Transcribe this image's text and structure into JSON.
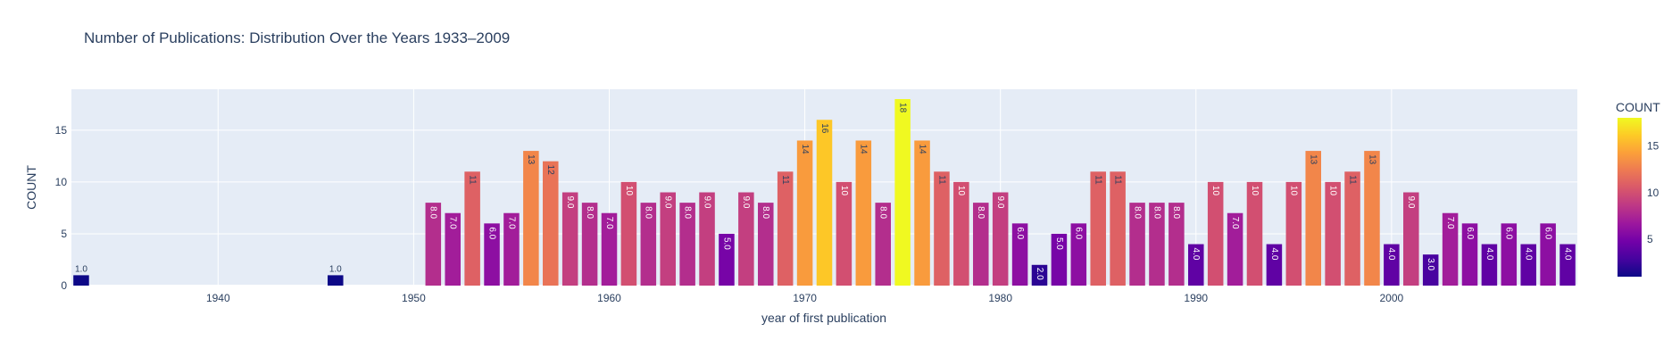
{
  "chart_data": {
    "type": "bar",
    "title": "Number of Publications: Distribution Over the Years 1933–2009",
    "xlabel": "year of first publication",
    "ylabel": "COUNT",
    "xlim": [
      1932.5,
      2009.5
    ],
    "ylim": [
      0,
      18.95
    ],
    "x_ticks": [
      1940,
      1950,
      1960,
      1970,
      1980,
      1990,
      2000
    ],
    "y_ticks": [
      0,
      5,
      10,
      15
    ],
    "grid": true,
    "colorbar": {
      "title": "COUNT",
      "range": [
        1,
        18
      ],
      "ticks": [
        5,
        10,
        15
      ],
      "colorscale": "plasma"
    },
    "x": [
      1933,
      1946,
      1951,
      1952,
      1953,
      1954,
      1955,
      1956,
      1957,
      1958,
      1959,
      1960,
      1961,
      1962,
      1963,
      1964,
      1965,
      1966,
      1967,
      1968,
      1969,
      1970,
      1971,
      1972,
      1973,
      1974,
      1975,
      1976,
      1977,
      1978,
      1979,
      1980,
      1981,
      1982,
      1983,
      1984,
      1985,
      1986,
      1987,
      1988,
      1989,
      1990,
      1991,
      1992,
      1993,
      1994,
      1995,
      1996,
      1997,
      1998,
      1999,
      2000,
      2001,
      2002,
      2003,
      2004,
      2005,
      2006,
      2007,
      2008,
      2009
    ],
    "values": [
      1,
      1,
      8,
      7,
      11,
      6,
      7,
      13,
      12,
      9,
      8,
      7,
      10,
      8,
      9,
      8,
      9,
      5,
      9,
      8,
      11,
      14,
      16,
      10,
      14,
      8,
      18,
      14,
      11,
      10,
      8,
      9,
      6,
      2,
      5,
      6,
      11,
      11,
      8,
      8,
      8,
      4,
      10,
      7,
      10,
      4,
      10,
      13,
      10,
      11,
      13,
      4,
      9,
      3,
      7,
      6,
      4,
      6,
      4,
      6,
      4
    ],
    "labels": [
      "1.0",
      "1.0",
      "8.0",
      "7.0",
      "11",
      "6.0",
      "7.0",
      "13",
      "12",
      "9.0",
      "8.0",
      "7.0",
      "10",
      "8.0",
      "9.0",
      "8.0",
      "9.0",
      "5.0",
      "9.0",
      "8.0",
      "11",
      "14",
      "16",
      "10",
      "14",
      "8.0",
      "18",
      "14",
      "11",
      "10",
      "8.0",
      "9.0",
      "6.0",
      "2.0",
      "5.0",
      "6.0",
      "11",
      "11",
      "8.0",
      "8.0",
      "8.0",
      "4.0",
      "10",
      "7.0",
      "10",
      "4.0",
      "10",
      "13",
      "10",
      "11",
      "13",
      "4.0",
      "9.0",
      "3.0",
      "7.0",
      "6.0",
      "4.0",
      "6.0",
      "4.0",
      "6.0",
      "4.0"
    ]
  }
}
